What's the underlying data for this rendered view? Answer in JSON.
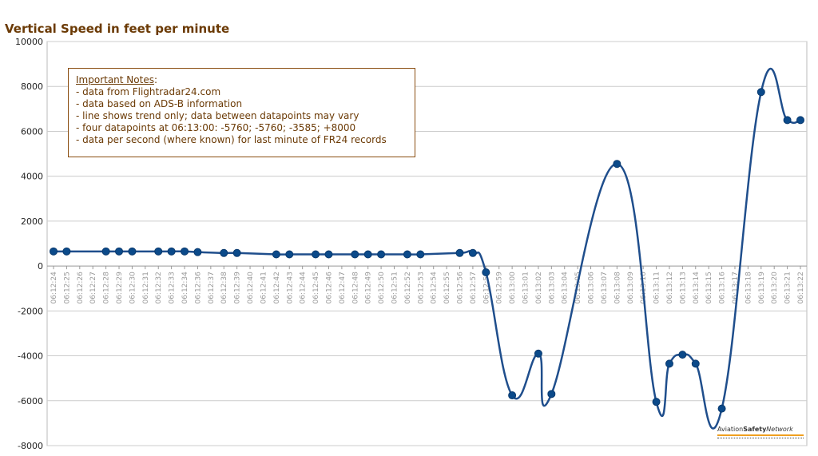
{
  "chart_data": {
    "type": "line",
    "title": "Vertical Speed in feet per minute",
    "xlabel": "",
    "ylabel": "",
    "ylim": [
      -8000,
      10000
    ],
    "yticks": [
      10000,
      8000,
      6000,
      4000,
      2000,
      0,
      -2000,
      -4000,
      -6000,
      -8000
    ],
    "grid": true,
    "categories": [
      "06:12:24",
      "06:12:25",
      "06:12:26",
      "06:12:27",
      "06:12:28",
      "06:12:29",
      "06:12:30",
      "06:12:31",
      "06:12:32",
      "06:12:33",
      "06:12:34",
      "06:12:36",
      "06:12:37",
      "06:12:38",
      "06:12:39",
      "06:12:40",
      "06:12:41",
      "06:12:42",
      "06:12:43",
      "06:12:44",
      "06:12:45",
      "06:12:46",
      "06:12:47",
      "06:12:48",
      "06:12:49",
      "06:12:50",
      "06:12:51",
      "06:12:52",
      "06:12:53",
      "06:12:54",
      "06:12:55",
      "06:12:56",
      "06:12:57",
      "06:12:58",
      "06:12:59",
      "06:13:00",
      "06:13:01",
      "06:13:02",
      "06:13:03",
      "06:13:04",
      "06:13:05",
      "06:13:06",
      "06:13:07",
      "06:13:08",
      "06:13:09",
      "06:13:10",
      "06:13:11",
      "06:13:12",
      "06:13:13",
      "06:13:14",
      "06:13:15",
      "06:13:16",
      "06:13:17",
      "06:13:18",
      "06:13:19",
      "06:13:20",
      "06:13:21",
      "06:13:22"
    ],
    "series": [
      {
        "color": "#1f4e8c",
        "values": [
          650,
          650,
          null,
          null,
          650,
          650,
          650,
          null,
          650,
          650,
          650,
          620,
          null,
          580,
          580,
          null,
          null,
          520,
          520,
          null,
          520,
          520,
          null,
          520,
          520,
          520,
          null,
          520,
          520,
          null,
          null,
          580,
          580,
          -280,
          null,
          -5760,
          null,
          -3900,
          -5700,
          null,
          null,
          null,
          null,
          4550,
          null,
          null,
          -6050,
          -4350,
          -3950,
          -4350,
          null,
          -6350,
          null,
          null,
          7750,
          null,
          6500,
          6500
        ]
      }
    ]
  },
  "notes": {
    "heading": "Important Notes",
    "heading_suffix": ":",
    "lines": [
      "- data from Flightradar24.com",
      "- data based on ADS-B information",
      "- line shows trend only; data between datapoints may vary",
      "- four datapoints at 06:13:00: -5760; -5760; -3585; +8000",
      "- data per second (where known) for last minute of FR24 records"
    ]
  },
  "logo": {
    "part1": "Aviation",
    "part2": "Safety",
    "part3": "Network"
  }
}
